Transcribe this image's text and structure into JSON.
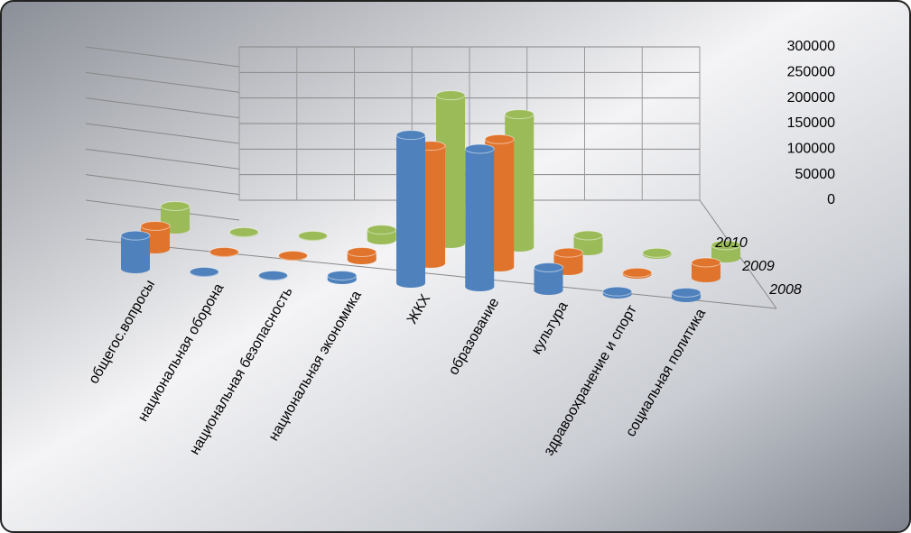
{
  "chart_data": {
    "type": "bar3d",
    "categories": [
      "общегос.вопросы",
      "национальная оборона",
      "национальная безопасность",
      "национальная экономика",
      "ЖКХ",
      "образование",
      "культура",
      "здравоохранение и спорт",
      "социальная политика"
    ],
    "series": [
      {
        "name": "2008",
        "color": "#4f81bd",
        "values": [
          65000,
          1000,
          1000,
          8000,
          290000,
          270000,
          45000,
          5000,
          10000
        ]
      },
      {
        "name": "2009",
        "color": "#e0742c",
        "values": [
          45000,
          1000,
          1000,
          15000,
          230000,
          250000,
          35000,
          3000,
          30000
        ]
      },
      {
        "name": "2010",
        "color": "#9bbb59",
        "values": [
          45000,
          1000,
          1000,
          20000,
          290000,
          260000,
          30000,
          3000,
          25000
        ]
      }
    ],
    "ylim": [
      0,
      300000
    ],
    "yticks": [
      0,
      50000,
      100000,
      150000,
      200000,
      250000,
      300000
    ],
    "grid": true
  }
}
